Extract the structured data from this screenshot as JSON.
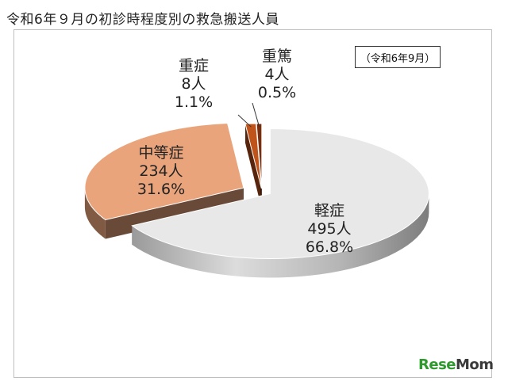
{
  "title": "令和6年９月の初診時程度別の救急搬送人員",
  "date_note": "（令和6年9月）",
  "logo": {
    "main": "Rese",
    "tail": "Mom"
  },
  "colors": {
    "light": "#e8e8e8",
    "moderate": "#eaa47c",
    "severe": "#c0531a",
    "critical": "#7a2e10"
  },
  "chart_data": {
    "type": "pie",
    "unit": "人",
    "slices": [
      {
        "name": "軽症",
        "value": 495,
        "value_label": "495人",
        "percent_label": "66.8%",
        "color": "#e8e8e8"
      },
      {
        "name": "中等症",
        "value": 234,
        "value_label": "234人",
        "percent_label": "31.6%",
        "color": "#eaa47c"
      },
      {
        "name": "重症",
        "value": 8,
        "value_label": "8人",
        "percent_label": "1.1%",
        "color": "#c0531a"
      },
      {
        "name": "重篤",
        "value": 4,
        "value_label": "4人",
        "percent_label": "0.5%",
        "color": "#7a2e10"
      }
    ]
  }
}
